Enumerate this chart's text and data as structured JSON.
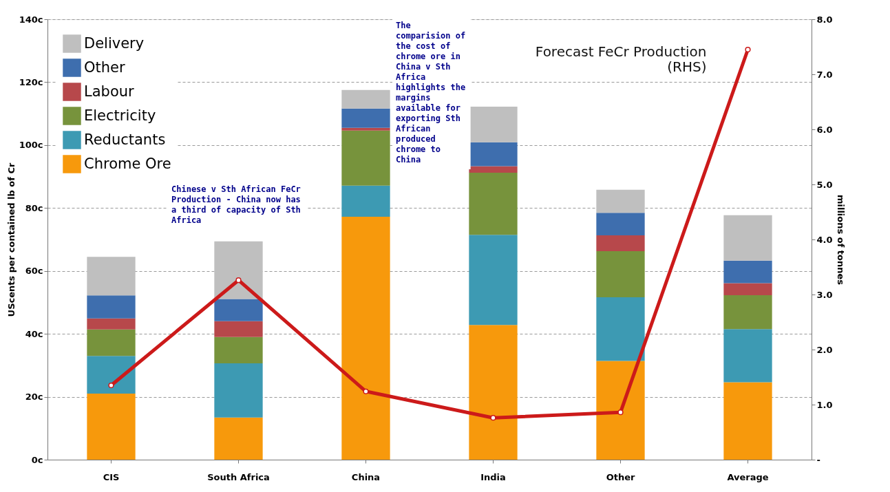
{
  "chart_data": {
    "type": "bar",
    "stacked": true,
    "categories": [
      "CIS",
      "South Africa",
      "China",
      "India",
      "Other",
      "Average"
    ],
    "ylabel": "UScents per contained lb of Cr",
    "y2label": "millions of tonnes",
    "ylim": [
      0,
      140
    ],
    "yticks": [
      {
        "value": 0,
        "label": "0c"
      },
      {
        "value": 20,
        "label": "20c"
      },
      {
        "value": 40,
        "label": "40c"
      },
      {
        "value": 60,
        "label": "60c"
      },
      {
        "value": 80,
        "label": "80c"
      },
      {
        "value": 100,
        "label": "100c"
      },
      {
        "value": 120,
        "label": "120c"
      },
      {
        "value": 140,
        "label": "140c"
      }
    ],
    "y2lim": [
      0,
      8
    ],
    "y2ticks": [
      {
        "value": 0,
        "label": "-"
      },
      {
        "value": 1,
        "label": "1.0"
      },
      {
        "value": 2,
        "label": "2.0"
      },
      {
        "value": 3,
        "label": "3.0"
      },
      {
        "value": 4,
        "label": "4.0"
      },
      {
        "value": 5,
        "label": "5.0"
      },
      {
        "value": 6,
        "label": "6.0"
      },
      {
        "value": 7,
        "label": "7.0"
      },
      {
        "value": 8,
        "label": "8.0"
      }
    ],
    "grid": "y",
    "legend": "top left",
    "series": [
      {
        "name": "Chrome Ore",
        "color": "#f7990c",
        "values": [
          21,
          13.4,
          77.2,
          42.8,
          31.4,
          24.6
        ]
      },
      {
        "name": "Reductants",
        "color": "#3d9ab3",
        "values": [
          12,
          17.2,
          9.9,
          28.7,
          20.2,
          16.9
        ]
      },
      {
        "name": "Electricity",
        "color": "#77933c",
        "values": [
          8.4,
          8.4,
          17.5,
          19.7,
          14.7,
          10.8
        ]
      },
      {
        "name": "Labour",
        "color": "#b7484b",
        "values": [
          3.5,
          5,
          0.9,
          2.1,
          5,
          3.8
        ]
      },
      {
        "name": "Other",
        "color": "#3e6eae",
        "values": [
          7.3,
          7.1,
          6.1,
          7.6,
          7.2,
          7.2
        ]
      },
      {
        "name": "Delivery",
        "color": "#bfbfbf",
        "values": [
          12.3,
          18.3,
          5.9,
          11.3,
          7.3,
          14.4
        ]
      },
      {
        "name": "Forecast FeCr Production (RHS)",
        "type": "line",
        "axis": "y2",
        "color": "#cc1a1a",
        "marker": "circle",
        "values": [
          1.35,
          3.26,
          1.24,
          0.76,
          0.86,
          7.45
        ]
      }
    ],
    "annotations": [
      "Chinese v Sth African FeCr Production - China now has a third of capacity of Sth Africa",
      "The comparision of the cost of chrome ore in China v Sth Africa highlights the margins available for exporting Sth African produced chrome to China"
    ]
  }
}
